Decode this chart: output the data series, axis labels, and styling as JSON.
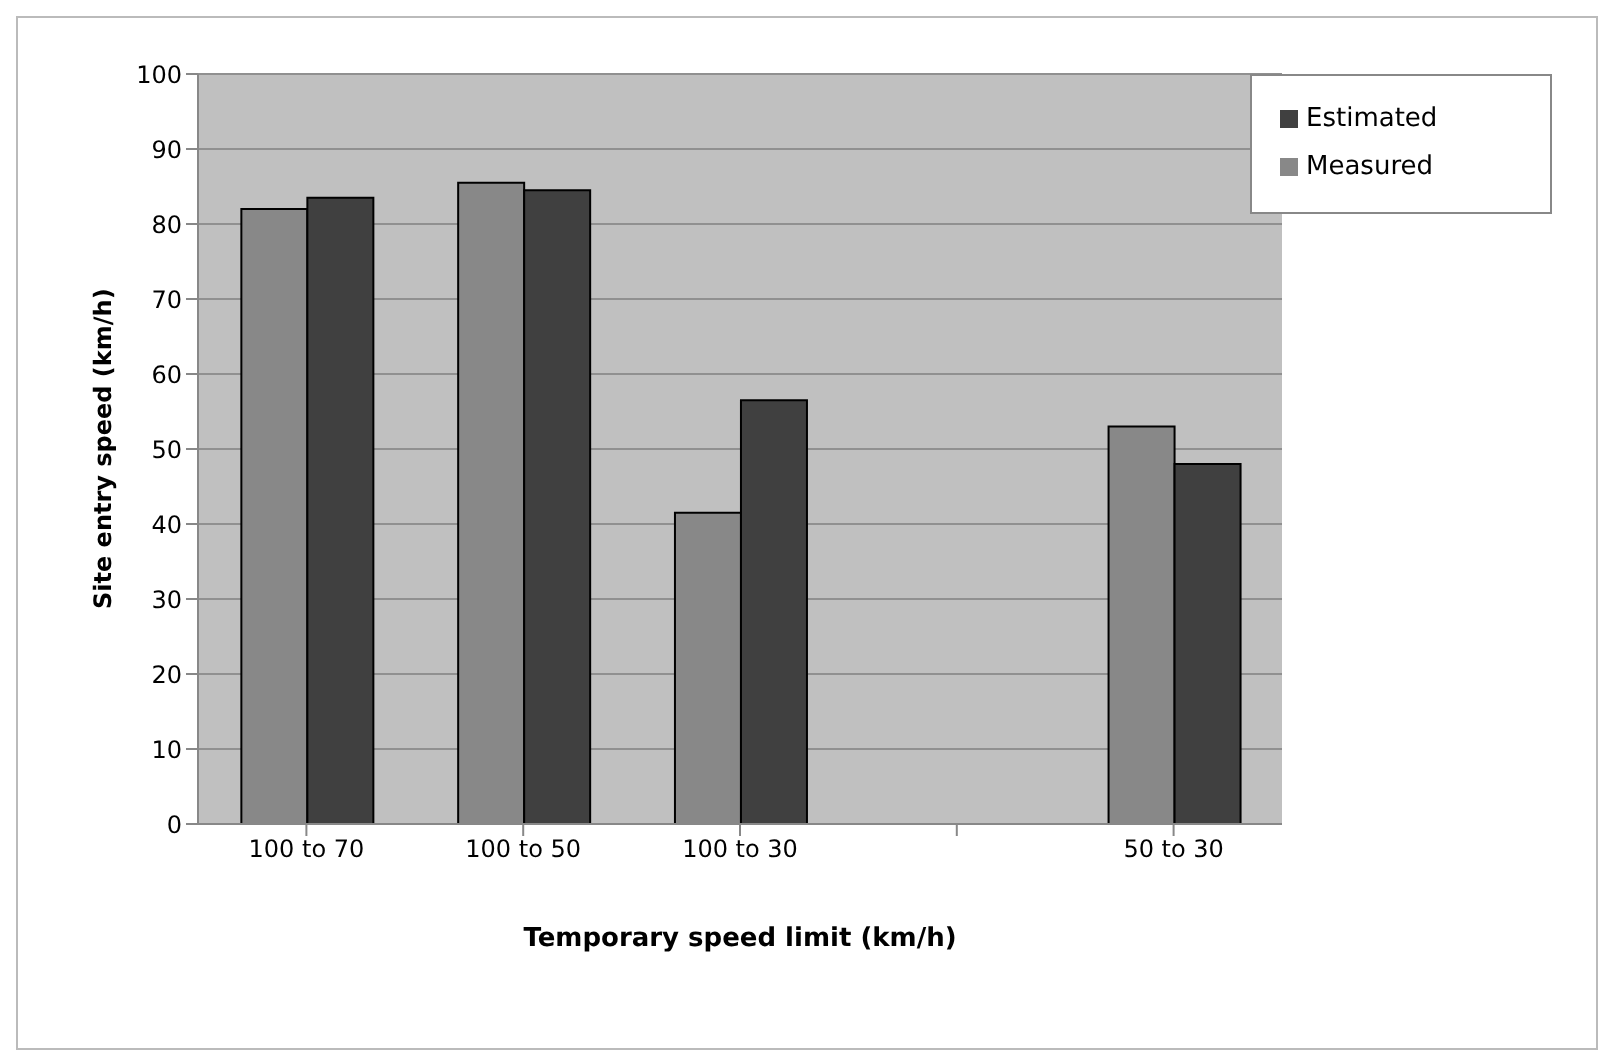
{
  "chart_data": {
    "type": "bar",
    "xlabel": "Temporary speed limit (km/h)",
    "ylabel": "Site entry speed (km/h)",
    "categories": [
      "100 to 70",
      "100 to 50",
      "100 to 30",
      null,
      "50 to 30"
    ],
    "series": [
      {
        "name": "Measured",
        "color": "#888888",
        "values": [
          82,
          85.5,
          41.5,
          null,
          53
        ]
      },
      {
        "name": "Estimated",
        "color": "#404040",
        "values": [
          83.5,
          84.5,
          56.5,
          null,
          48
        ]
      }
    ],
    "ylim": [
      0,
      100
    ],
    "yticks": [
      0,
      10,
      20,
      30,
      40,
      50,
      60,
      70,
      80,
      90,
      100
    ],
    "grid": "y",
    "legend": "top right"
  }
}
